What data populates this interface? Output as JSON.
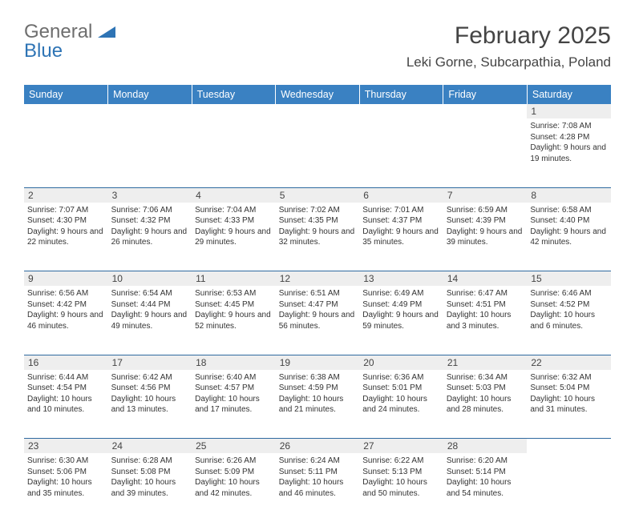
{
  "logo": {
    "text1": "General",
    "text2": "Blue",
    "color_gray": "#6e6e6e",
    "color_blue": "#2e74b5"
  },
  "title": "February 2025",
  "location": "Leki Gorne, Subcarpathia, Poland",
  "colors": {
    "header_bg": "#3a81c2",
    "daynum_bg": "#eeeeee",
    "border": "#2f6aa0"
  },
  "weekdays": [
    "Sunday",
    "Monday",
    "Tuesday",
    "Wednesday",
    "Thursday",
    "Friday",
    "Saturday"
  ],
  "weeks": [
    [
      null,
      null,
      null,
      null,
      null,
      null,
      {
        "d": "1",
        "sr": "Sunrise: 7:08 AM",
        "ss": "Sunset: 4:28 PM",
        "dl": "Daylight: 9 hours and 19 minutes."
      }
    ],
    [
      {
        "d": "2",
        "sr": "Sunrise: 7:07 AM",
        "ss": "Sunset: 4:30 PM",
        "dl": "Daylight: 9 hours and 22 minutes."
      },
      {
        "d": "3",
        "sr": "Sunrise: 7:06 AM",
        "ss": "Sunset: 4:32 PM",
        "dl": "Daylight: 9 hours and 26 minutes."
      },
      {
        "d": "4",
        "sr": "Sunrise: 7:04 AM",
        "ss": "Sunset: 4:33 PM",
        "dl": "Daylight: 9 hours and 29 minutes."
      },
      {
        "d": "5",
        "sr": "Sunrise: 7:02 AM",
        "ss": "Sunset: 4:35 PM",
        "dl": "Daylight: 9 hours and 32 minutes."
      },
      {
        "d": "6",
        "sr": "Sunrise: 7:01 AM",
        "ss": "Sunset: 4:37 PM",
        "dl": "Daylight: 9 hours and 35 minutes."
      },
      {
        "d": "7",
        "sr": "Sunrise: 6:59 AM",
        "ss": "Sunset: 4:39 PM",
        "dl": "Daylight: 9 hours and 39 minutes."
      },
      {
        "d": "8",
        "sr": "Sunrise: 6:58 AM",
        "ss": "Sunset: 4:40 PM",
        "dl": "Daylight: 9 hours and 42 minutes."
      }
    ],
    [
      {
        "d": "9",
        "sr": "Sunrise: 6:56 AM",
        "ss": "Sunset: 4:42 PM",
        "dl": "Daylight: 9 hours and 46 minutes."
      },
      {
        "d": "10",
        "sr": "Sunrise: 6:54 AM",
        "ss": "Sunset: 4:44 PM",
        "dl": "Daylight: 9 hours and 49 minutes."
      },
      {
        "d": "11",
        "sr": "Sunrise: 6:53 AM",
        "ss": "Sunset: 4:45 PM",
        "dl": "Daylight: 9 hours and 52 minutes."
      },
      {
        "d": "12",
        "sr": "Sunrise: 6:51 AM",
        "ss": "Sunset: 4:47 PM",
        "dl": "Daylight: 9 hours and 56 minutes."
      },
      {
        "d": "13",
        "sr": "Sunrise: 6:49 AM",
        "ss": "Sunset: 4:49 PM",
        "dl": "Daylight: 9 hours and 59 minutes."
      },
      {
        "d": "14",
        "sr": "Sunrise: 6:47 AM",
        "ss": "Sunset: 4:51 PM",
        "dl": "Daylight: 10 hours and 3 minutes."
      },
      {
        "d": "15",
        "sr": "Sunrise: 6:46 AM",
        "ss": "Sunset: 4:52 PM",
        "dl": "Daylight: 10 hours and 6 minutes."
      }
    ],
    [
      {
        "d": "16",
        "sr": "Sunrise: 6:44 AM",
        "ss": "Sunset: 4:54 PM",
        "dl": "Daylight: 10 hours and 10 minutes."
      },
      {
        "d": "17",
        "sr": "Sunrise: 6:42 AM",
        "ss": "Sunset: 4:56 PM",
        "dl": "Daylight: 10 hours and 13 minutes."
      },
      {
        "d": "18",
        "sr": "Sunrise: 6:40 AM",
        "ss": "Sunset: 4:57 PM",
        "dl": "Daylight: 10 hours and 17 minutes."
      },
      {
        "d": "19",
        "sr": "Sunrise: 6:38 AM",
        "ss": "Sunset: 4:59 PM",
        "dl": "Daylight: 10 hours and 21 minutes."
      },
      {
        "d": "20",
        "sr": "Sunrise: 6:36 AM",
        "ss": "Sunset: 5:01 PM",
        "dl": "Daylight: 10 hours and 24 minutes."
      },
      {
        "d": "21",
        "sr": "Sunrise: 6:34 AM",
        "ss": "Sunset: 5:03 PM",
        "dl": "Daylight: 10 hours and 28 minutes."
      },
      {
        "d": "22",
        "sr": "Sunrise: 6:32 AM",
        "ss": "Sunset: 5:04 PM",
        "dl": "Daylight: 10 hours and 31 minutes."
      }
    ],
    [
      {
        "d": "23",
        "sr": "Sunrise: 6:30 AM",
        "ss": "Sunset: 5:06 PM",
        "dl": "Daylight: 10 hours and 35 minutes."
      },
      {
        "d": "24",
        "sr": "Sunrise: 6:28 AM",
        "ss": "Sunset: 5:08 PM",
        "dl": "Daylight: 10 hours and 39 minutes."
      },
      {
        "d": "25",
        "sr": "Sunrise: 6:26 AM",
        "ss": "Sunset: 5:09 PM",
        "dl": "Daylight: 10 hours and 42 minutes."
      },
      {
        "d": "26",
        "sr": "Sunrise: 6:24 AM",
        "ss": "Sunset: 5:11 PM",
        "dl": "Daylight: 10 hours and 46 minutes."
      },
      {
        "d": "27",
        "sr": "Sunrise: 6:22 AM",
        "ss": "Sunset: 5:13 PM",
        "dl": "Daylight: 10 hours and 50 minutes."
      },
      {
        "d": "28",
        "sr": "Sunrise: 6:20 AM",
        "ss": "Sunset: 5:14 PM",
        "dl": "Daylight: 10 hours and 54 minutes."
      },
      null
    ]
  ]
}
